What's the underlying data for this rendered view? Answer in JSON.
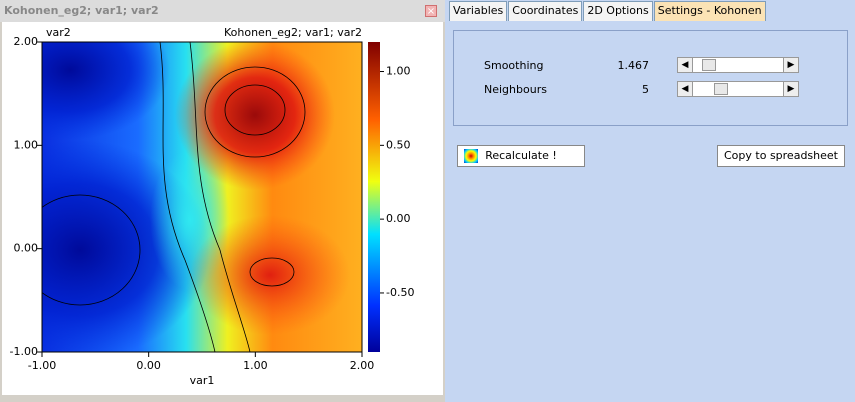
{
  "window": {
    "title": "Kohonen_eg2; var1; var2"
  },
  "chart_data": {
    "type": "heatmap",
    "title": "Kohonen_eg2; var1; var2",
    "x_label": "var1",
    "y_label": "var2",
    "xlim": [
      -1,
      2
    ],
    "ylim": [
      -1,
      2
    ],
    "xticks": [
      {
        "value": -1,
        "label": "-1.00"
      },
      {
        "value": 0,
        "label": "0.00"
      },
      {
        "value": 1,
        "label": "1.00"
      },
      {
        "value": 2,
        "label": "2.00"
      }
    ],
    "yticks": [
      {
        "value": -1,
        "label": "-1.00"
      },
      {
        "value": 0,
        "label": "0.00"
      },
      {
        "value": 1,
        "label": "1.00"
      },
      {
        "value": 2,
        "label": "2.00"
      }
    ],
    "colorbar": {
      "lim": [
        -0.9,
        1.2
      ],
      "ticks": [
        {
          "value": -0.5,
          "label": "-0.50"
        },
        {
          "value": 0,
          "label": "0.00"
        },
        {
          "value": 0.5,
          "label": "0.50"
        },
        {
          "value": 1,
          "label": "1.00"
        }
      ]
    }
  },
  "tabs": [
    "Variables",
    "Coordinates",
    "2D Options",
    "Settings - Kohonen"
  ],
  "settings": [
    {
      "label": "Smoothing",
      "value": 1.467
    },
    {
      "label": "Neighbours",
      "value": 5
    }
  ],
  "buttons": [
    "Recalculate !",
    "Copy to spreadsheet"
  ]
}
